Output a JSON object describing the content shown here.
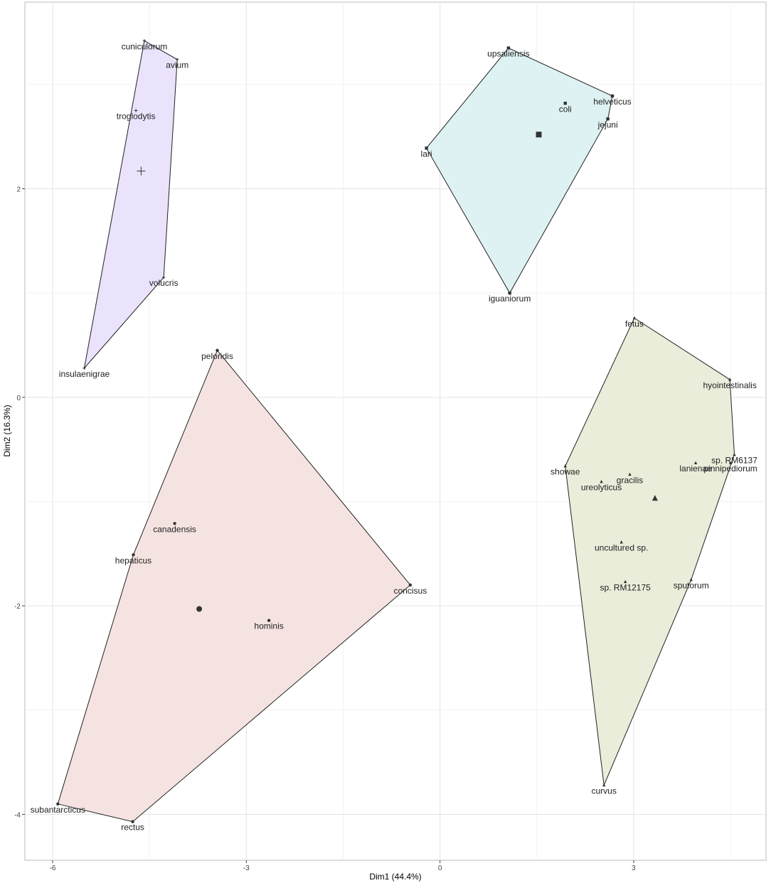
{
  "chart_data": {
    "type": "scatter",
    "x_label": "Dim1 (44.4%)",
    "y_label": "Dim2 (16.3%)",
    "xlim": [
      -6.43,
      5.05
    ],
    "ylim": [
      -4.44,
      3.79
    ],
    "xticks": [
      -6,
      -3,
      0,
      3
    ],
    "yticks": [
      -4,
      -2,
      0,
      2
    ],
    "grid": true,
    "series": [
      {
        "color": "#ebe2fc",
        "marker": "plus",
        "labels": [
          "cuniculorum",
          "avium",
          "troglodytis",
          "volucris",
          "insulaenigrae"
        ],
        "x": [
          -4.58,
          -4.07,
          -4.71,
          -4.28,
          -5.51
        ],
        "y": [
          3.42,
          3.24,
          2.75,
          1.15,
          0.28
        ],
        "centroid": [
          -4.63,
          2.17
        ]
      },
      {
        "color": "#dff2f3",
        "marker": "square",
        "labels": [
          "upsaliensis",
          "coli",
          "helveticus",
          "jejuni",
          "lari",
          "iguaniorum"
        ],
        "x": [
          1.06,
          1.94,
          2.67,
          2.6,
          -0.21,
          1.08
        ],
        "y": [
          3.35,
          2.82,
          2.89,
          2.67,
          2.39,
          1.0
        ],
        "centroid": [
          1.53,
          2.52
        ]
      },
      {
        "color": "#f5e3e2",
        "marker": "circle",
        "labels": [
          "peloridis",
          "canadensis",
          "hepaticus",
          "concisus",
          "hominis",
          "subantarcticus",
          "rectus"
        ],
        "x": [
          -3.45,
          -4.11,
          -4.75,
          -0.46,
          -2.65,
          -5.92,
          -4.76
        ],
        "y": [
          0.45,
          -1.21,
          -1.51,
          -1.8,
          -2.14,
          -3.9,
          -4.07
        ],
        "centroid": [
          -3.73,
          -2.03
        ]
      },
      {
        "color": "#e9edda",
        "marker": "triangle",
        "labels": [
          "fetus",
          "hyointestinalis",
          "sp. RM6137",
          "pinnipediorum",
          "lanienae",
          "showae",
          "gracilis",
          "ureolyticus",
          "uncultured sp.",
          "sp. RM12175",
          "sputorum",
          "curvus"
        ],
        "x": [
          3.01,
          4.49,
          4.56,
          4.5,
          3.96,
          1.94,
          2.94,
          2.5,
          2.81,
          2.87,
          3.89,
          2.54
        ],
        "y": [
          0.76,
          0.17,
          -0.55,
          -0.63,
          -0.63,
          -0.66,
          -0.74,
          -0.81,
          -1.39,
          -1.77,
          -1.75,
          -3.72
        ],
        "centroid": [
          3.33,
          -0.97
        ]
      }
    ]
  }
}
